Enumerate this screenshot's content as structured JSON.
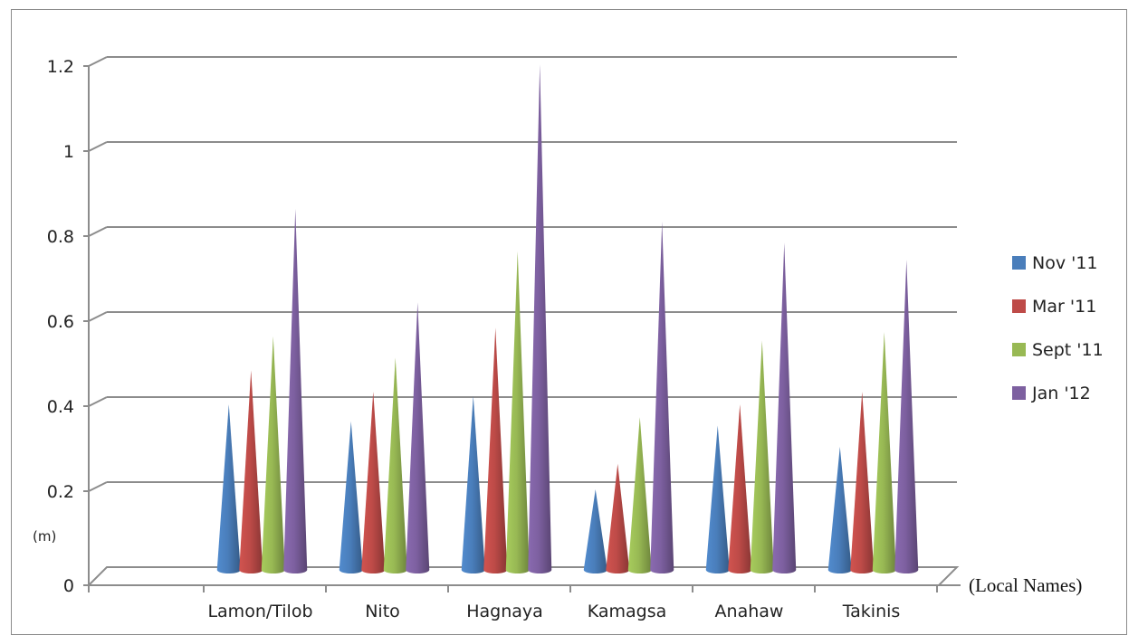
{
  "chart_data": {
    "type": "bar",
    "style": "3d-cone",
    "categories": [
      "Lamon/Tilob",
      "Nito",
      "Hagnaya",
      "Kamagsa",
      "Anahaw",
      "Takinis"
    ],
    "series": [
      {
        "name": "Nov '11",
        "color": "#4a7ebb",
        "values": [
          0.4,
          0.36,
          0.42,
          0.2,
          0.35,
          0.3
        ]
      },
      {
        "name": "Mar '11",
        "color": "#be4b48",
        "values": [
          0.48,
          0.43,
          0.58,
          0.26,
          0.4,
          0.43
        ]
      },
      {
        "name": "Sept '11",
        "color": "#98b954",
        "values": [
          0.56,
          0.51,
          0.76,
          0.37,
          0.55,
          0.57
        ]
      },
      {
        "name": "Jan '12",
        "color": "#7d60a0",
        "values": [
          0.86,
          0.64,
          1.2,
          0.83,
          0.78,
          0.74
        ]
      }
    ],
    "yticks": [
      "0",
      "0.2",
      "0.4",
      "0.6",
      "0.8",
      "1",
      "1.2"
    ],
    "ylim": [
      0,
      1.2
    ],
    "ylabel": "(m)",
    "xlabel": "(Local Names)",
    "grid": true,
    "legend_position": "right"
  }
}
